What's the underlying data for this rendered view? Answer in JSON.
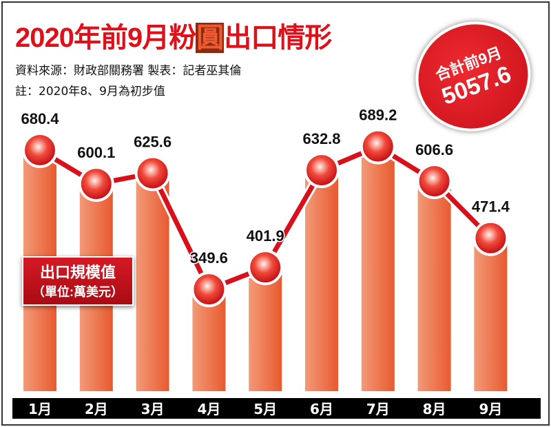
{
  "title_parts": [
    "2020年前9月",
    "粉",
    "圓",
    "出口情形"
  ],
  "source": "資料來源：財政部關務署  製表：記者巫其倫",
  "note": "註：2020年8、9月為初步值",
  "badge": {
    "line1": "合計前9月",
    "line2": "5057.6"
  },
  "unit_box": {
    "line1": "出口規模值",
    "line2": "（單位:萬美元）"
  },
  "colors": {
    "title": "#e0101a",
    "bar": "#ea6a40",
    "line": "#d8101c",
    "axis_band": "#000000"
  },
  "chart_data": {
    "type": "bar",
    "title": "2020年前9月粉圓出口情形",
    "ylabel": "出口規模值（單位:萬美元）",
    "categories": [
      "1月",
      "2月",
      "3月",
      "4月",
      "5月",
      "6月",
      "7月",
      "8月",
      "9月"
    ],
    "values": [
      680.4,
      600.1,
      625.6,
      349.6,
      401.9,
      632.8,
      689.2,
      606.6,
      471.4
    ],
    "overlay": "line with markers",
    "grid": false
  }
}
